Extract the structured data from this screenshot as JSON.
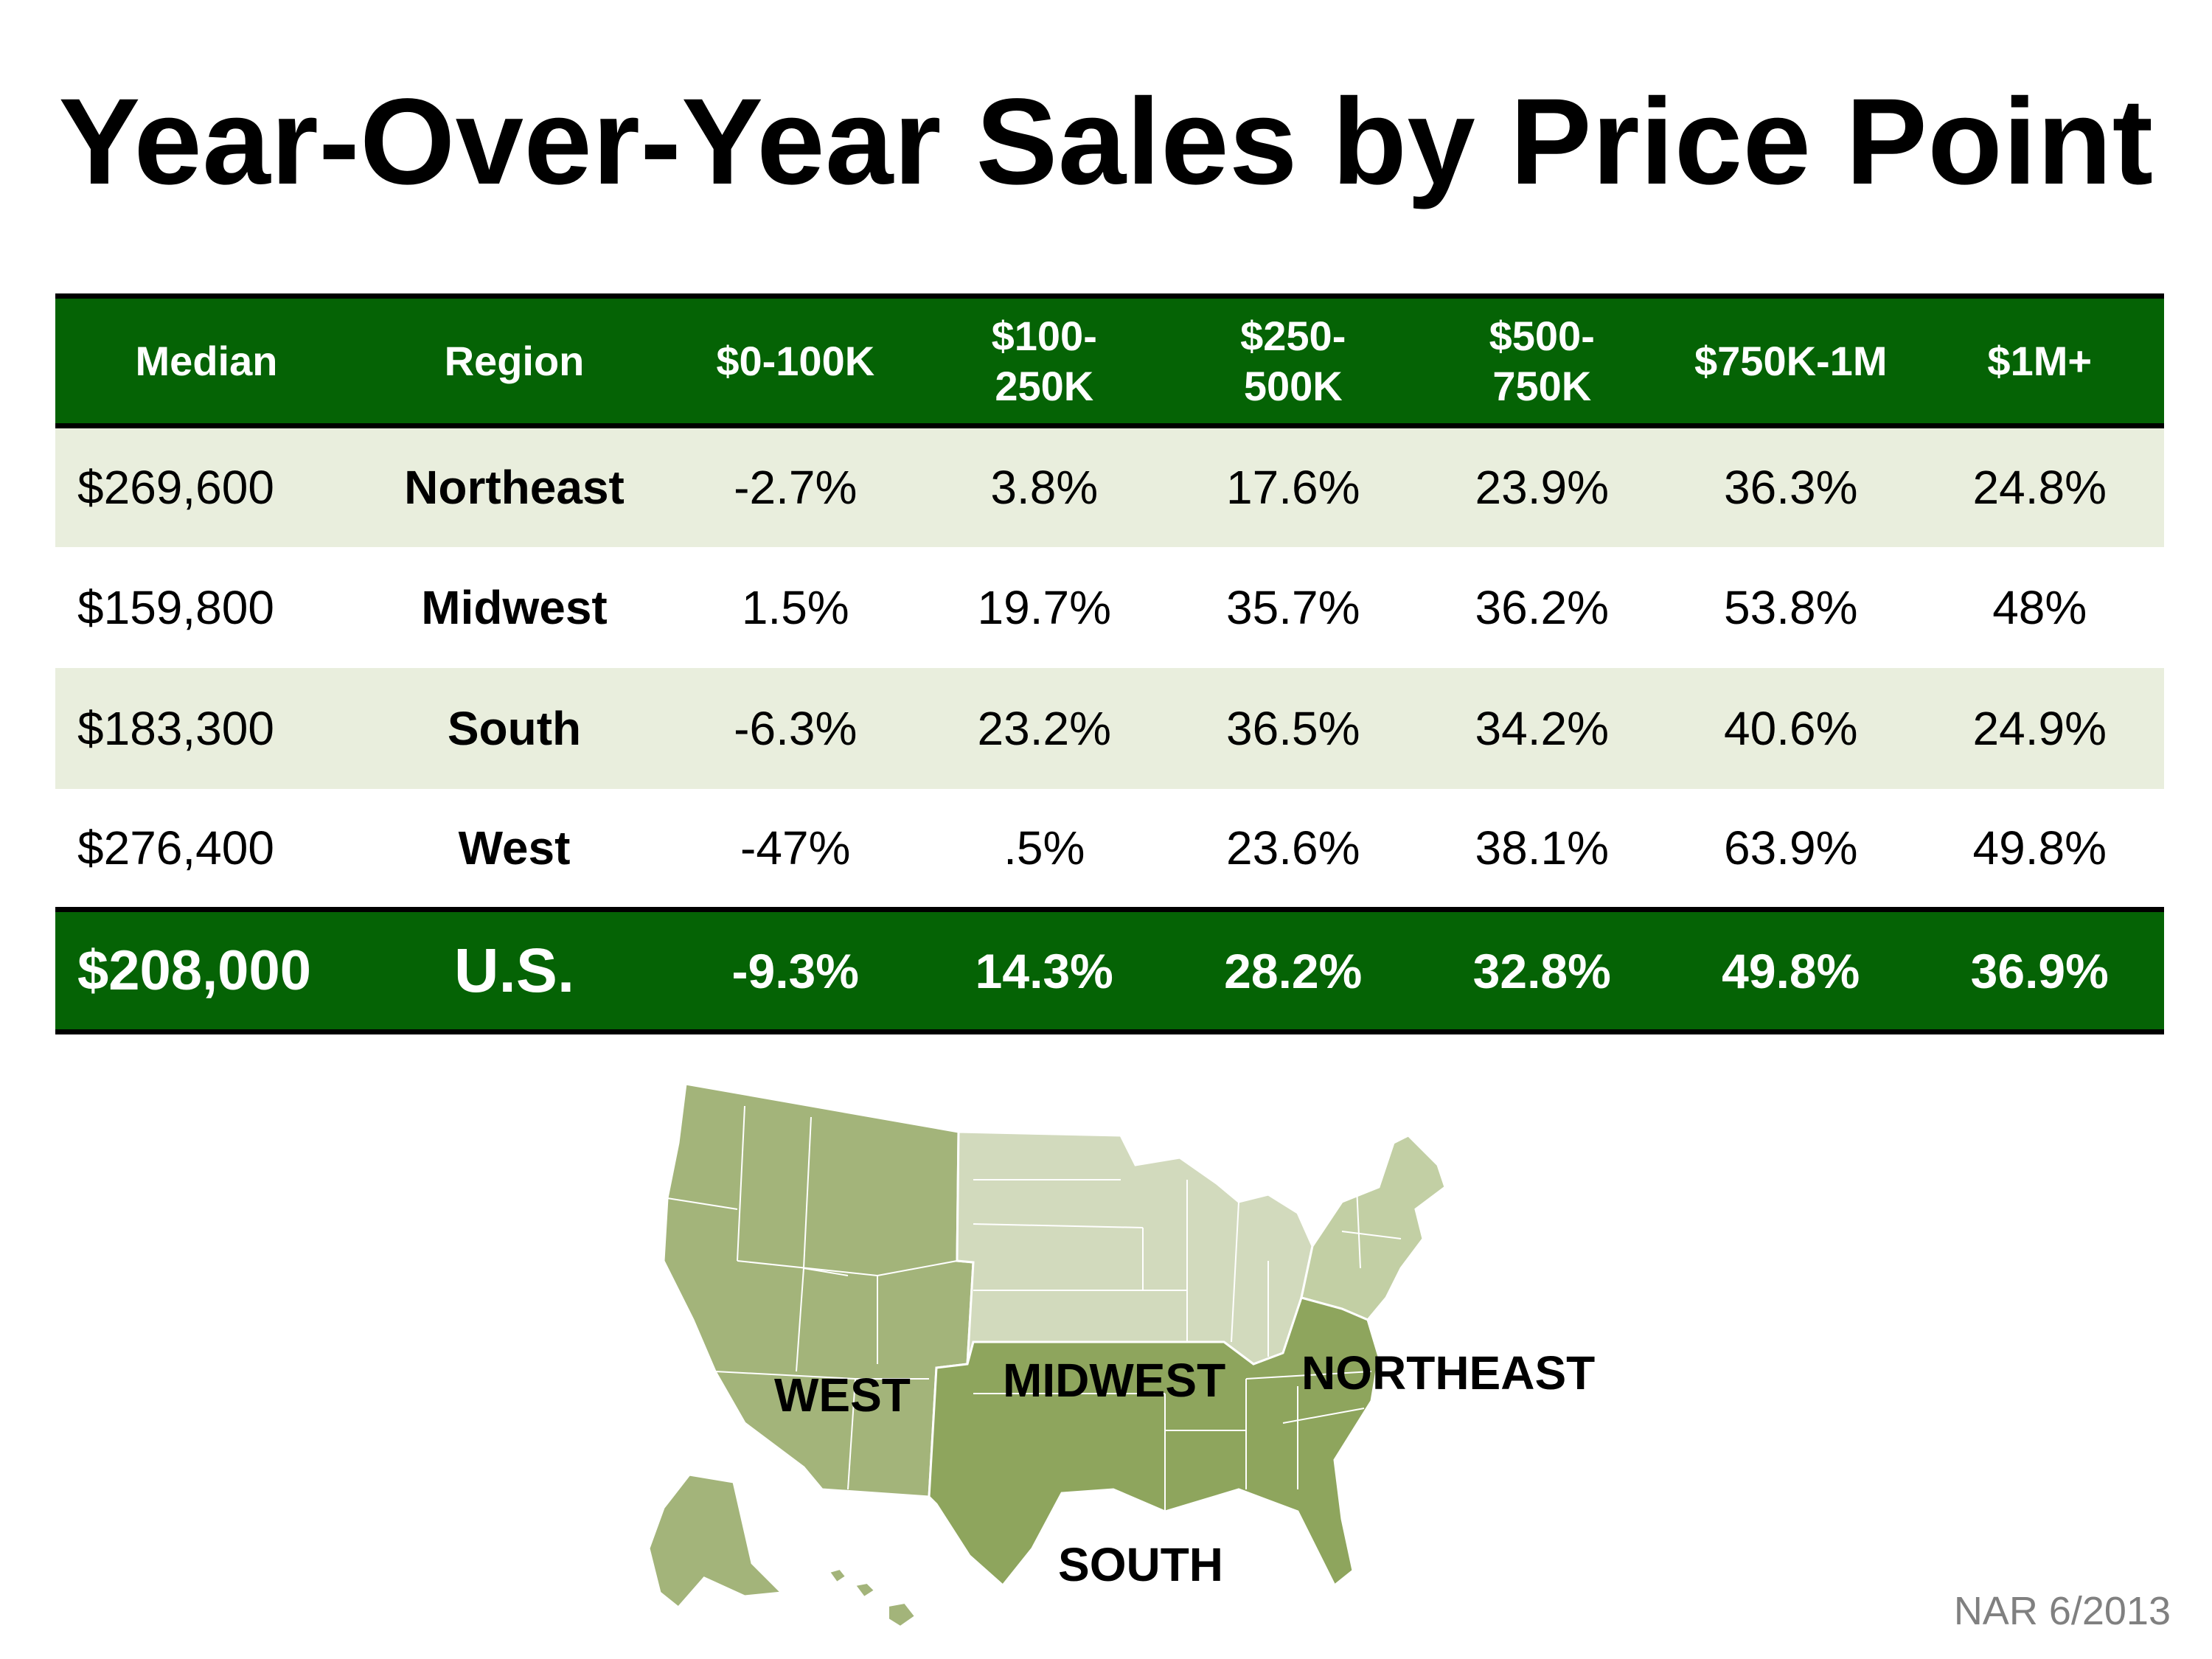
{
  "title": "Year-Over-Year Sales by Price Point",
  "table": {
    "headers": {
      "median": "Median",
      "region": "Region",
      "p1": "$0-100K",
      "p2_a": "$100-",
      "p2_b": "250K",
      "p3_a": "$250-",
      "p3_b": "500K",
      "p4_a": "$500-",
      "p4_b": "750K",
      "p5": "$750K-1M",
      "p6": "$1M+"
    },
    "rows": [
      {
        "median": "$269,600",
        "region": "Northeast",
        "p1": "-2.7%",
        "p2": "3.8%",
        "p3": "17.6%",
        "p4": "23.9%",
        "p5": "36.3%",
        "p6": "24.8%"
      },
      {
        "median": "$159,800",
        "region": "Midwest",
        "p1": "1.5%",
        "p2": "19.7%",
        "p3": "35.7%",
        "p4": "36.2%",
        "p5": "53.8%",
        "p6": "48%"
      },
      {
        "median": "$183,300",
        "region": "South",
        "p1": "-6.3%",
        "p2": "23.2%",
        "p3": "36.5%",
        "p4": "34.2%",
        "p5": "40.6%",
        "p6": "24.9%"
      },
      {
        "median": "$276,400",
        "region": "West",
        "p1": "-47%",
        "p2": ".5%",
        "p3": "23.6%",
        "p4": "38.1%",
        "p5": "63.9%",
        "p6": "49.8%"
      }
    ],
    "total": {
      "median": "$208,000",
      "region": "U.S.",
      "p1": "-9.3%",
      "p2": "14.3%",
      "p3": "28.2%",
      "p4": "32.8%",
      "p5": "49.8%",
      "p6": "36.9%"
    }
  },
  "map": {
    "labels": {
      "west": "WEST",
      "midwest": "MIDWEST",
      "northeast": "NORTHEAST",
      "south": "SOUTH"
    },
    "colors": {
      "west": "#a3b47a",
      "midwest": "#d2dabd",
      "northeast": "#c2cfa4",
      "south": "#8ea55d"
    }
  },
  "colors": {
    "header_green": "#056305",
    "row_shade": "#e9eedd"
  },
  "source": "NAR 6/2013"
}
